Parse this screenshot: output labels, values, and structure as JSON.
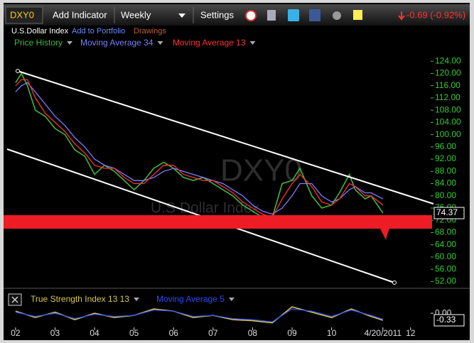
{
  "toolbar": {
    "symbol": "DXY0",
    "add_indicator": "Add Indicator",
    "interval": "Weekly",
    "settings": "Settings",
    "change": "-0.69 (-0.92%)"
  },
  "subbar": {
    "name": "U.S.Dollar Index",
    "add_to_portfolio": "Add to Portfolio",
    "drawings": "Drawings"
  },
  "chart_data": [
    {
      "type": "line",
      "title": "DXY0",
      "subtitle": "U.S Dollar Index",
      "x": [
        2002.0,
        2002.15,
        2002.3,
        2002.5,
        2002.75,
        2003.0,
        2003.25,
        2003.5,
        2003.75,
        2004.0,
        2004.25,
        2004.5,
        2004.75,
        2005.0,
        2005.25,
        2005.5,
        2005.75,
        2006.0,
        2006.25,
        2006.5,
        2006.75,
        2007.0,
        2007.25,
        2007.5,
        2007.75,
        2008.0,
        2008.25,
        2008.5,
        2008.75,
        2009.0,
        2009.2,
        2009.5,
        2009.75,
        2010.0,
        2010.2,
        2010.45,
        2010.6,
        2010.85,
        2011.0,
        2011.3
      ],
      "series": [
        {
          "name": "Price History",
          "color": "#3cb83c",
          "values": [
            117,
            120,
            116,
            108,
            106,
            102,
            100,
            95,
            93,
            87,
            90,
            88,
            85,
            82,
            85,
            89,
            91,
            89,
            86,
            85,
            86,
            84,
            82,
            80,
            77,
            75,
            73,
            73,
            84,
            85,
            89,
            80,
            76,
            77,
            81,
            87,
            82,
            79,
            80,
            74.37
          ]
        },
        {
          "name": "Moving Average 34",
          "color": "#7d7dff",
          "values": [
            114,
            116,
            117,
            114,
            110,
            106,
            103,
            99,
            96,
            92,
            90,
            89,
            87,
            85,
            85,
            86,
            88,
            89,
            88,
            87,
            86,
            85,
            84,
            82,
            80,
            77,
            75,
            74,
            76,
            80,
            84,
            84,
            80,
            78,
            79,
            82,
            83,
            81,
            81,
            79
          ]
        },
        {
          "name": "Moving Average 13",
          "color": "#ff3030",
          "values": [
            116,
            118,
            118,
            112,
            107,
            104,
            101,
            97,
            94,
            90,
            89,
            89,
            86,
            84,
            84,
            87,
            90,
            90,
            87,
            86,
            85,
            85,
            83,
            81,
            78,
            76,
            74,
            73,
            79,
            84,
            87,
            83,
            78,
            77,
            79,
            84,
            83,
            80,
            80,
            77
          ]
        }
      ],
      "last_value": 74.37,
      "xlim": [
        2001.75,
        2012.49
      ],
      "xticks": [
        {
          "value": 2002,
          "label": "02"
        },
        {
          "value": 2003,
          "label": "03"
        },
        {
          "value": 2004,
          "label": "04"
        },
        {
          "value": 2005,
          "label": "05"
        },
        {
          "value": 2006,
          "label": "06"
        },
        {
          "value": 2007,
          "label": "07"
        },
        {
          "value": 2008,
          "label": "08"
        },
        {
          "value": 2009,
          "label": "09"
        },
        {
          "value": 2010,
          "label": "10"
        },
        {
          "value": 2011.3,
          "label": "4/20/2011"
        },
        {
          "value": 2012,
          "label": "12"
        }
      ],
      "ylim": [
        50,
        128
      ],
      "yticks": [
        {
          "value": 52,
          "label": "52.00"
        },
        {
          "value": 56,
          "label": "56.00"
        },
        {
          "value": 60,
          "label": "60.00"
        },
        {
          "value": 64,
          "label": "64.00"
        },
        {
          "value": 68,
          "label": "68.00"
        },
        {
          "value": 72,
          "label": "72.00"
        },
        {
          "value": 76,
          "label": "76.00"
        },
        {
          "value": 80,
          "label": "80.00"
        },
        {
          "value": 84,
          "label": "84.00"
        },
        {
          "value": 88,
          "label": "88.00"
        },
        {
          "value": 92,
          "label": "92.00"
        },
        {
          "value": 96,
          "label": "96.00"
        },
        {
          "value": 100,
          "label": "100.00"
        },
        {
          "value": 104,
          "label": "104.00"
        },
        {
          "value": 108,
          "label": "108.00"
        },
        {
          "value": 112,
          "label": "112.00"
        },
        {
          "value": 116,
          "label": "116.00"
        },
        {
          "value": 120,
          "label": "120.00"
        },
        {
          "value": 124,
          "label": "124.00"
        }
      ],
      "tick_color": "#33cc33"
    },
    {
      "type": "line",
      "x": [
        2002,
        2002.5,
        2003,
        2003.5,
        2004,
        2004.5,
        2005,
        2005.5,
        2006,
        2006.5,
        2007,
        2007.5,
        2008,
        2008.5,
        2009,
        2009.5,
        2010,
        2010.5,
        2011,
        2011.3
      ],
      "series": [
        {
          "name": "True Strength Index 13 13",
          "color": "#d8c848",
          "values": [
            0.1,
            -0.2,
            0.05,
            -0.3,
            0.0,
            -0.2,
            -0.1,
            0.2,
            0.1,
            -0.2,
            -0.1,
            -0.3,
            -0.35,
            -0.45,
            0.3,
            0.05,
            -0.2,
            0.2,
            -0.15,
            -0.33
          ]
        },
        {
          "name": "Moving Average 5",
          "color": "#2a4cff",
          "values": [
            0.05,
            -0.15,
            0.0,
            -0.25,
            -0.05,
            -0.15,
            -0.1,
            0.15,
            0.1,
            -0.15,
            -0.1,
            -0.25,
            -0.3,
            -0.4,
            0.2,
            0.1,
            -0.15,
            0.15,
            -0.1,
            -0.28
          ]
        }
      ],
      "last_value": {
        "value": -0.33,
        "label": "-0.33"
      },
      "xlim": [
        2001.75,
        2012.49
      ],
      "ylim": [
        -0.63,
        0.37
      ],
      "yticks": [
        {
          "value": 0,
          "label": "0.00"
        }
      ],
      "tick_color": "#dddddd"
    }
  ]
}
